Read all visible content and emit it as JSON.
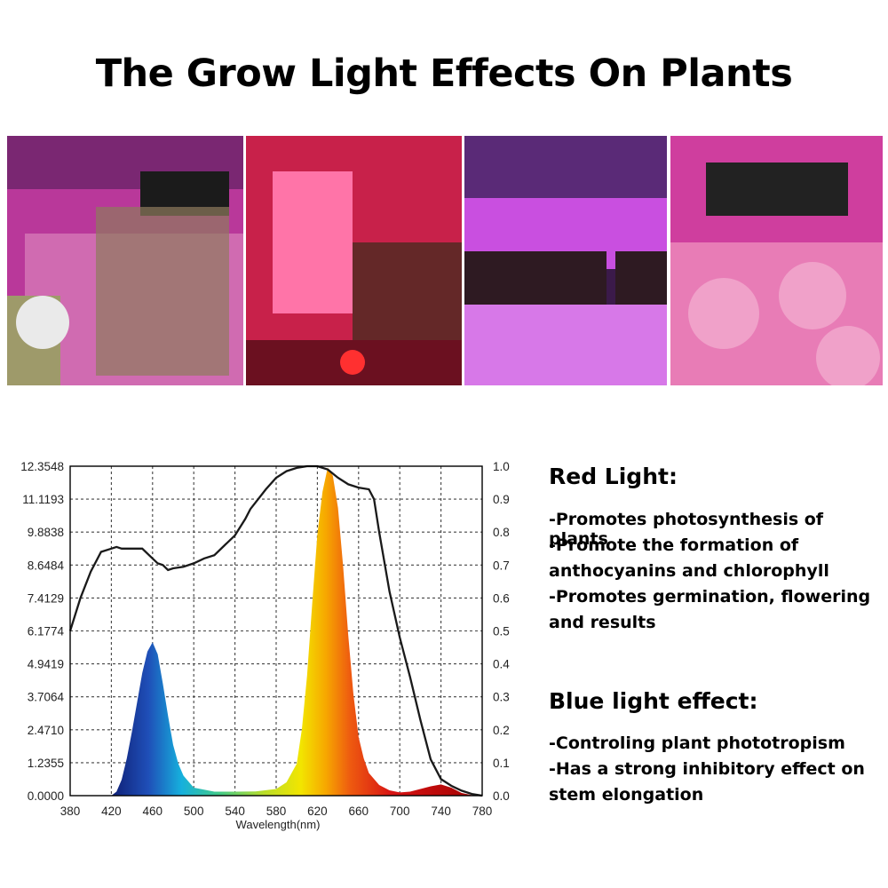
{
  "title": "The Grow Light Effects On Plants",
  "photos": [
    {
      "name": "grow-room-photo-1",
      "tint": "#d24fb3"
    },
    {
      "name": "grow-room-photo-2",
      "tint": "#d8204f"
    },
    {
      "name": "grow-room-photo-3",
      "tint": "#a93cd0"
    },
    {
      "name": "grow-room-photo-4",
      "tint": "#e04fae"
    }
  ],
  "red_light": {
    "heading": "Red Light:",
    "lines": [
      "-Promotes photosynthesis of plants",
      "-Promote the formation of",
      "anthocyanins and chlorophyll",
      "-Promotes germination, flowering",
      "and results"
    ]
  },
  "blue_light": {
    "heading": "Blue light effect:",
    "lines": [
      "-Controling plant phototropism",
      "-Has a strong inhibitory effect on",
      "stem elongation"
    ]
  },
  "chart_data": {
    "type": "area",
    "xlabel": "Wavelength(nm)",
    "xlim": [
      380,
      780
    ],
    "x_ticks": [
      "380",
      "420",
      "460",
      "500",
      "540",
      "580",
      "620",
      "660",
      "700",
      "740",
      "780"
    ],
    "ylim_left": [
      0,
      12.3548
    ],
    "y_ticks_left": [
      "0.0000",
      "1.2355",
      "2.4710",
      "3.7064",
      "4.9419",
      "6.1774",
      "7.4129",
      "8.6484",
      "9.8838",
      "11.1193",
      "12.3548"
    ],
    "ylim_right": [
      0,
      1.0
    ],
    "y_ticks_right": [
      "0.0",
      "0.1",
      "0.2",
      "0.3",
      "0.4",
      "0.5",
      "0.6",
      "0.7",
      "0.8",
      "0.9",
      "1.0"
    ],
    "grid": true,
    "series": [
      {
        "type": "area",
        "axis": "left",
        "x": [
          380,
          420,
          425,
          430,
          435,
          440,
          445,
          450,
          455,
          460,
          465,
          470,
          475,
          480,
          485,
          490,
          500,
          520,
          540,
          560,
          580,
          590,
          600,
          605,
          610,
          615,
          620,
          625,
          630,
          635,
          640,
          645,
          650,
          655,
          660,
          665,
          670,
          680,
          690,
          700,
          710,
          720,
          730,
          740,
          750,
          760,
          770,
          780
        ],
        "y": [
          0,
          0,
          0.15,
          0.6,
          1.4,
          2.4,
          3.5,
          4.6,
          5.4,
          5.75,
          5.3,
          4.2,
          3.0,
          1.9,
          1.2,
          0.75,
          0.3,
          0.15,
          0.15,
          0.16,
          0.25,
          0.5,
          1.2,
          2.5,
          4.5,
          7.2,
          9.8,
          11.4,
          12.3,
          12.0,
          10.8,
          8.6,
          6.0,
          3.8,
          2.2,
          1.4,
          0.85,
          0.4,
          0.2,
          0.12,
          0.15,
          0.25,
          0.35,
          0.42,
          0.3,
          0.1,
          0.02,
          0
        ]
      },
      {
        "type": "line",
        "axis": "right",
        "x": [
          380,
          390,
          400,
          410,
          420,
          425,
          430,
          440,
          450,
          460,
          465,
          470,
          475,
          480,
          490,
          500,
          510,
          520,
          530,
          540,
          550,
          555,
          560,
          570,
          580,
          590,
          600,
          610,
          620,
          630,
          640,
          650,
          660,
          670,
          675,
          680,
          690,
          700,
          710,
          720,
          730,
          740,
          750,
          760,
          770,
          780
        ],
        "y": [
          0.5,
          0.6,
          0.68,
          0.74,
          0.75,
          0.755,
          0.75,
          0.75,
          0.75,
          0.72,
          0.705,
          0.7,
          0.685,
          0.69,
          0.695,
          0.705,
          0.72,
          0.73,
          0.76,
          0.79,
          0.84,
          0.87,
          0.89,
          0.93,
          0.965,
          0.985,
          0.995,
          1.0,
          1.0,
          0.99,
          0.965,
          0.945,
          0.935,
          0.93,
          0.9,
          0.8,
          0.62,
          0.48,
          0.36,
          0.23,
          0.11,
          0.05,
          0.03,
          0.015,
          0.005,
          0.0
        ]
      }
    ]
  }
}
